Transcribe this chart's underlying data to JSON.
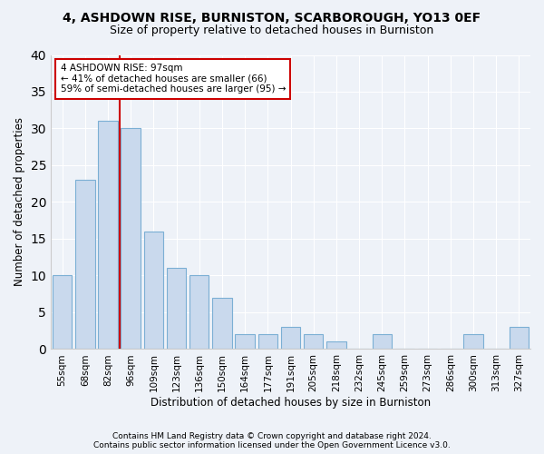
{
  "title1": "4, ASHDOWN RISE, BURNISTON, SCARBOROUGH, YO13 0EF",
  "title2": "Size of property relative to detached houses in Burniston",
  "xlabel": "Distribution of detached houses by size in Burniston",
  "ylabel": "Number of detached properties",
  "categories": [
    "55sqm",
    "68sqm",
    "82sqm",
    "96sqm",
    "109sqm",
    "123sqm",
    "136sqm",
    "150sqm",
    "164sqm",
    "177sqm",
    "191sqm",
    "205sqm",
    "218sqm",
    "232sqm",
    "245sqm",
    "259sqm",
    "273sqm",
    "286sqm",
    "300sqm",
    "313sqm",
    "327sqm"
  ],
  "values": [
    10,
    23,
    31,
    30,
    16,
    11,
    10,
    7,
    2,
    2,
    3,
    2,
    1,
    0,
    2,
    0,
    0,
    0,
    2,
    0,
    3
  ],
  "bar_color": "#c9d9ed",
  "bar_edgecolor": "#7bafd4",
  "vline_color": "#cc0000",
  "vline_pos": 2.5,
  "annotation_text": "4 ASHDOWN RISE: 97sqm\n← 41% of detached houses are smaller (66)\n59% of semi-detached houses are larger (95) →",
  "annotation_box_facecolor": "#ffffff",
  "annotation_box_edgecolor": "#cc0000",
  "ylim": [
    0,
    40
  ],
  "yticks": [
    0,
    5,
    10,
    15,
    20,
    25,
    30,
    35,
    40
  ],
  "footer1": "Contains HM Land Registry data © Crown copyright and database right 2024.",
  "footer2": "Contains public sector information licensed under the Open Government Licence v3.0.",
  "background_color": "#eef2f8",
  "grid_color": "#ffffff",
  "title1_fontsize": 10,
  "title2_fontsize": 9,
  "xlabel_fontsize": 8.5,
  "ylabel_fontsize": 8.5,
  "footer_fontsize": 6.5,
  "tick_fontsize": 7.5,
  "annotation_fontsize": 7.5
}
